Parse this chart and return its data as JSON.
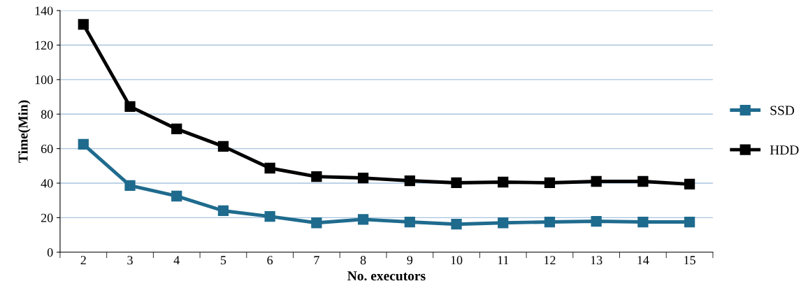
{
  "chart_data": {
    "type": "line",
    "xlabel": "No. executors",
    "ylabel": "Time(Min)",
    "categories": [
      "2",
      "3",
      "4",
      "5",
      "6",
      "7",
      "8",
      "9",
      "10",
      "11",
      "12",
      "13",
      "14",
      "15"
    ],
    "series": [
      {
        "name": "SSD",
        "color": "#1f6b8e",
        "values": [
          62.5,
          38.6,
          32.5,
          24,
          20.7,
          17,
          19,
          17.5,
          16.2,
          17,
          17.5,
          17.9,
          17.5,
          17.5
        ]
      },
      {
        "name": "HDD",
        "color": "#000000",
        "values": [
          132,
          84.4,
          71.4,
          61.3,
          48.7,
          43.8,
          43,
          41.4,
          40.2,
          40.6,
          40.2,
          41,
          41,
          39.4
        ]
      }
    ],
    "ylim": [
      0,
      140
    ],
    "yticks": [
      0,
      20,
      40,
      60,
      80,
      100,
      120,
      140
    ],
    "grid": "y",
    "legend": "right",
    "marker": "square",
    "line_style": "solid"
  }
}
